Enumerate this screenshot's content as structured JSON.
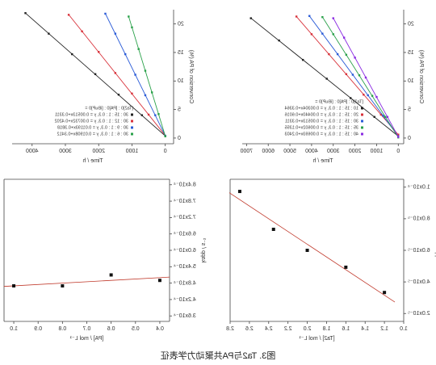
{
  "chart_data": [
    {
      "type": "scatter",
      "x_label": "Time / h",
      "y_label": "Conversion of PA (%)",
      "xlim": [
        -250,
        4600
      ],
      "ylim": [
        -1,
        22.5
      ],
      "xticks": [
        0,
        1000,
        2000,
        3000,
        4000
      ],
      "yticks": [
        0,
        5,
        10,
        15,
        20
      ],
      "fit_line": "linear",
      "legend": "lower right",
      "legend_title": "[Ta2]0 : [PA]0 : [iBuP]0 =",
      "series": [
        {
          "name": "30 : 15 : 1 : 0.3, y = 0.00513x+0.3311",
          "color": "#222222",
          "x": [
            0,
            700,
            1400,
            2100,
            2800,
            3500,
            4200
          ],
          "values": [
            0.3,
            4.0,
            7.6,
            11.2,
            14.7,
            18.3,
            21.9
          ]
        },
        {
          "name": "30 : 12 : 1 : 0.3, y = 0.00732x+0.4202",
          "color": "#d8313a",
          "x": [
            0,
            500,
            1000,
            1500,
            2000,
            2500,
            2900
          ],
          "values": [
            0.4,
            4.1,
            7.8,
            11.4,
            15.1,
            18.7,
            21.6
          ]
        },
        {
          "name": "30 : 9 : 1 : 0.3, y = 0.01193x+0.3818",
          "color": "#2a5bd7",
          "x": [
            0,
            300,
            600,
            900,
            1200,
            1500,
            1800
          ],
          "values": [
            0.4,
            4.0,
            7.5,
            11.1,
            14.7,
            18.3,
            21.8
          ]
        },
        {
          "name": "30 : 6 : 1 : 0.3, y = 0.01908x+0.3412",
          "color": "#2aa14a",
          "x": [
            0,
            200,
            400,
            600,
            800,
            1000,
            1100
          ],
          "values": [
            0.3,
            4.2,
            8.0,
            11.8,
            15.6,
            19.4,
            21.3
          ]
        }
      ]
    },
    {
      "type": "scatter",
      "x_label": "Time / h",
      "y_label": "Conversion of PA (%)",
      "xlim": [
        -250,
        7200
      ],
      "ylim": [
        -1,
        22.5
      ],
      "xticks": [
        0,
        1000,
        2000,
        3000,
        4000,
        5000,
        6000,
        7000
      ],
      "yticks": [
        0,
        5,
        10,
        15,
        20
      ],
      "fit_line": "linear",
      "legend": "lower right",
      "legend_title": "[Ta2]0 : [PA]0 : [iBuP]0 =",
      "series": [
        {
          "name": "10 : 15 : 1 : 0.3, y = 0.00304x+0.3364",
          "color": "#222222",
          "x": [
            0,
            1100,
            2200,
            3300,
            4400,
            5500,
            6800
          ],
          "values": [
            0.3,
            3.7,
            7.0,
            10.4,
            13.7,
            17.1,
            21.0
          ]
        },
        {
          "name": "20 : 15 : 1 : 0.3, y = 0.00440x+0.6016",
          "color": "#d8313a",
          "x": [
            0,
            800,
            1600,
            2400,
            3200,
            4000,
            4700
          ],
          "values": [
            0.6,
            4.1,
            7.6,
            11.2,
            14.7,
            18.2,
            21.3
          ]
        },
        {
          "name": "30 : 15 : 1 : 0.3, y = 0.00513x+0.3311",
          "color": "#2a5bd7",
          "x": [
            0,
            700,
            1400,
            2100,
            2800,
            3500,
            4100
          ],
          "values": [
            0.3,
            3.9,
            7.5,
            11.1,
            14.7,
            18.3,
            21.4
          ]
        },
        {
          "name": "35 : 15 : 1 : 0.3, y = 0.00602x+0.1355",
          "color": "#2aa14a",
          "x": [
            0,
            600,
            1200,
            1800,
            2400,
            3000,
            3500
          ],
          "values": [
            0.1,
            3.7,
            7.4,
            11.0,
            14.6,
            18.2,
            21.2
          ]
        },
        {
          "name": "40 : 15 : 1 : 0.3, y = 0.00693x+0.2403",
          "color": "#8a2be2",
          "x": [
            0,
            500,
            1000,
            1500,
            2000,
            2500,
            3000
          ],
          "values": [
            0.2,
            3.7,
            7.2,
            10.6,
            14.1,
            17.6,
            21.0
          ]
        }
      ]
    },
    {
      "type": "scatter",
      "x_label": "[PA] / mol L⁻¹",
      "y_label": "kapp / s⁻¹",
      "xlim": [
        0.36,
        1.04
      ],
      "ylim": [
        0.00034,
        0.00086
      ],
      "xticks": [
        0.4,
        0.5,
        0.6,
        0.7,
        0.8,
        0.9,
        {
          "value": 1,
          "label": "1.0"
        }
      ],
      "yticks": [
        {
          "value": 0.00036,
          "label": "3.6x10⁻⁴"
        },
        {
          "value": 0.00042,
          "label": "4.2x10⁻⁴"
        },
        {
          "value": 0.00048,
          "label": "4.8x10⁻⁴"
        },
        {
          "value": 0.00054,
          "label": "5.4x10⁻⁴"
        },
        {
          "value": 0.0006,
          "label": "6.0x10⁻⁴"
        },
        {
          "value": 0.00066,
          "label": "6.6x10⁻⁴"
        },
        {
          "value": 0.00072,
          "label": "7.2x10⁻⁴"
        },
        {
          "value": 0.00078,
          "label": "7.8x10⁻⁴"
        },
        {
          "value": 0.00084,
          "label": "8.4x10⁻⁴"
        }
      ],
      "fit_line": "linear",
      "fit_color": "#c0392b",
      "series": [
        {
          "color": "#111111",
          "x": [
            0.4,
            0.6,
            0.8,
            1.0
          ],
          "values": [
            0.00049,
            0.00051,
            0.00047,
            0.00047
          ]
        }
      ]
    },
    {
      "type": "scatter",
      "x_label": "[Ta2] / mol L⁻¹",
      "y_label": "kapp / s⁻¹",
      "xlim": [
        1.0,
        2.8
      ],
      "ylim": [
        1.5e-05,
        0.000105
      ],
      "xticks": [
        {
          "value": 1,
          "label": "1.0"
        },
        1.2,
        1.4,
        1.6,
        1.8,
        {
          "value": 2,
          "label": "2.0"
        },
        2.2,
        2.4,
        2.6,
        2.8
      ],
      "yticks": [
        {
          "value": 2e-05,
          "label": "2.0x10⁻⁵"
        },
        {
          "value": 4e-05,
          "label": "4.0x10⁻⁵"
        },
        {
          "value": 6e-05,
          "label": "6.0x10⁻⁵"
        },
        {
          "value": 8e-05,
          "label": "8.0x10⁻⁵"
        },
        {
          "value": 0.0001,
          "label": "1.0x10⁻⁴"
        }
      ],
      "fit_line": "linear",
      "fit_color": "#c0392b",
      "series": [
        {
          "color": "#111111",
          "x": [
            1.2,
            1.6,
            2.0,
            2.35,
            2.7
          ],
          "values": [
            3.33e-05,
            4.93e-05,
            6e-05,
            7.33e-05,
            9.73e-05
          ]
        }
      ]
    }
  ],
  "caption": "图3.  Ta2与PA共聚动力学表征"
}
